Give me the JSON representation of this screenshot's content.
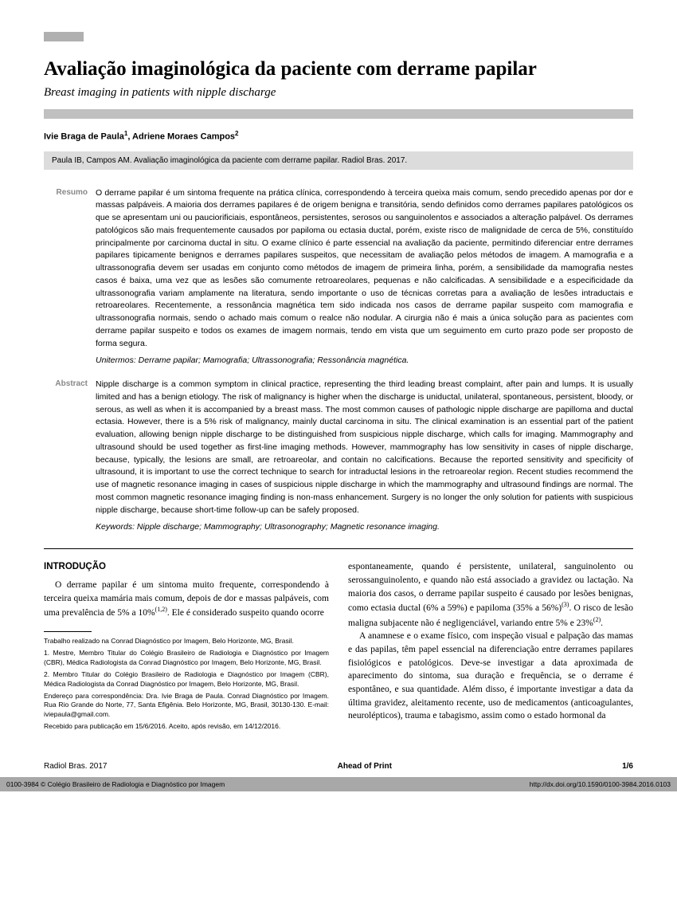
{
  "title_pt": "Avaliação imaginológica da paciente com derrame papilar",
  "subtitle_en": "Breast imaging in patients with nipple discharge",
  "authors_html": "Ivie Braga de Paula<sup>1</sup>, Adriene Moraes Campos<sup>2</sup>",
  "citation": "Paula IB, Campos AM. Avaliação imaginológica da paciente com derrame papilar. Radiol Bras. 2017.",
  "resumo_label": "Resumo",
  "resumo_body": "O derrame papilar é um sintoma frequente na prática clínica, correspondendo à terceira queixa mais comum, sendo precedido apenas por dor e massas palpáveis. A maioria dos derrames papilares é de origem benigna e transitória, sendo definidos como derrames papilares patológicos os que se apresentam uni ou pauciorificiais, espontâneos, persistentes, serosos ou sanguinolentos e associados a alteração palpável. Os derrames patológicos são mais frequentemente causados por papiloma ou ectasia ductal, porém, existe risco de malignidade de cerca de 5%, constituído principalmente por carcinoma ductal in situ. O exame clínico é parte essencial na avaliação da paciente, permitindo diferenciar entre derrames papilares tipicamente benignos e derrames papilares suspeitos, que necessitam de avaliação pelos métodos de imagem. A mamografia e a ultrassonografia devem ser usadas em conjunto como métodos de imagem de primeira linha, porém, a sensibilidade da mamografia nestes casos é baixa, uma vez que as lesões são comumente retroareolares, pequenas e não calcificadas. A sensibilidade e a especificidade da ultrassonografia variam amplamente na literatura, sendo importante o uso de técnicas corretas para a avaliação de lesões intraductais e retroareolares. Recentemente, a ressonância magnética tem sido indicada nos casos de derrame papilar suspeito com mamografia e ultrassonografia normais, sendo o achado mais comum o realce não nodular. A cirurgia não é mais a única solução para as pacientes com derrame papilar suspeito e todos os exames de imagem normais, tendo em vista que um seguimento em curto prazo pode ser proposto de forma segura.",
  "unitermos": "Unitermos: Derrame papilar; Mamografia; Ultrassonografia; Ressonância magnética.",
  "abstract_label": "Abstract",
  "abstract_body": "Nipple discharge is a common symptom in clinical practice, representing the third leading breast complaint, after pain and lumps. It is usually limited and has a benign etiology. The risk of malignancy is higher when the discharge is uniductal, unilateral, spontaneous, persistent, bloody, or serous, as well as when it is accompanied by a breast mass. The most common causes of pathologic nipple discharge are papilloma and ductal ectasia. However, there is a 5% risk of malignancy, mainly ductal carcinoma in situ. The clinical examination is an essential part of the patient evaluation, allowing benign nipple discharge to be distinguished from suspicious nipple discharge, which calls for imaging. Mammography and ultrasound should be used together as first-line imaging methods. However, mammography has low sensitivity in cases of nipple discharge, because, typically, the lesions are small, are retroareolar, and contain no calcifications. Because the reported sensitivity and specificity of ultrasound, it is important to use the correct technique to search for intraductal lesions in the retroareolar region. Recent studies recommend the use of magnetic resonance imaging in cases of suspicious nipple discharge in which the mammography and ultrasound findings are normal. The most common magnetic resonance imaging finding is non-mass enhancement. Surgery is no longer the only solution for patients with suspicious nipple discharge, because short-time follow-up can be safely proposed.",
  "keywords": "Keywords: Nipple discharge; Mammography; Ultrasonography; Magnetic resonance imaging.",
  "intro_heading": "INTRODUÇÃO",
  "intro_col1_html": "O derrame papilar é um sintoma muito frequente, correspondendo à terceira queixa mamária mais comum, depois de dor e massas palpáveis, com uma prevalência de 5% a 10%<sup class='ref'>(1,2)</sup>. Ele é considerado suspeito quando ocorre",
  "intro_col2_p1_html": "espontaneamente, quando é persistente, unilateral, sanguinolento ou serossanguinolento, e quando não está associado a gravidez ou lactação. Na maioria dos casos, o derrame papilar suspeito é causado por lesões benignas, como ectasia ductal (6% a 59%) e papiloma (35% a 56%)<sup class='ref'>(3)</sup>. O risco de lesão maligna subjacente não é negligenciável, variando entre 5% e 23%<sup class='ref'>(2)</sup>.",
  "intro_col2_p2": "A anamnese e o exame físico, com inspeção visual e palpação das mamas e das papilas, têm papel essencial na diferenciação entre derrames papilares fisiológicos e patológicos. Deve-se investigar a data aproximada de aparecimento do sintoma, sua duração e frequência, se o derrame é espontâneo, e sua quantidade. Além disso, é importante investigar a data da última gravidez, aleitamento recente, uso de medicamentos (anticoagulantes, neurolépticos), trauma e tabagismo, assim como o estado hormonal da",
  "footnotes": [
    "Trabalho realizado na Conrad Diagnóstico por Imagem, Belo Horizonte, MG, Brasil.",
    "1. Mestre, Membro Titular do Colégio Brasileiro de Radiologia e Diagnóstico por Imagem (CBR), Médica Radiologista da Conrad Diagnóstico por Imagem, Belo Horizonte, MG, Brasil.",
    "2. Membro Titular do Colégio Brasileiro de Radiologia e Diagnóstico por Imagem (CBR), Médica Radiologista da Conrad Diagnóstico por Imagem, Belo Horizonte, MG, Brasil.",
    "Endereço para correspondência: Dra. Ivie Braga de Paula. Conrad Diagnóstico por Imagem. Rua Rio Grande do Norte, 77, Santa Efigênia. Belo Horizonte, MG, Brasil, 30130-130. E-mail: iviepaula@gmail.com.",
    "Recebido para publicação em 15/6/2016. Aceito, após revisão, em 14/12/2016."
  ],
  "footer_left": "Radiol Bras. 2017",
  "footer_center": "Ahead of Print",
  "footer_right": "1/6",
  "bottom_left": "0100-3984 © Colégio Brasileiro de Radiologia e Diagnóstico por Imagem",
  "bottom_right": "http://dx.doi.org/10.1590/0100-3984.2016.0103"
}
